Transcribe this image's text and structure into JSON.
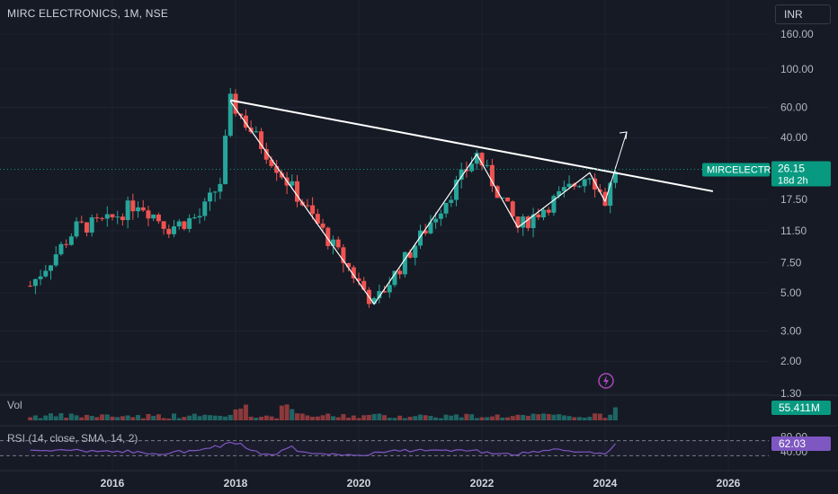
{
  "header": {
    "title": "MIRC ELECTRONICS, 1M, NSE",
    "currency": "INR"
  },
  "colors": {
    "background": "#161a25",
    "up": "#26a69a",
    "down": "#ef5350",
    "rsi_line": "#7e57c2",
    "axis_text": "#b2b5be",
    "drawing": "#ffffff",
    "price_badge": "#089981"
  },
  "chart_data": [
    {
      "type": "candlestick",
      "price_scale": "log",
      "y_ticks": [
        "160.00",
        "100.00",
        "60.00",
        "40.00",
        "17.50",
        "11.50",
        "7.50",
        "5.00",
        "3.00",
        "2.00",
        "1.30"
      ],
      "x_ticks": [
        "2016",
        "2018",
        "2020",
        "2022",
        "2024",
        "2026"
      ],
      "last_price": "26.15",
      "symbol_label": "MIRCELECTR",
      "countdown": "18d 2h",
      "pattern_pivots": [
        {
          "date": "2017-12",
          "price": 65
        },
        {
          "date": "2020-04",
          "price": 4.3
        },
        {
          "date": "2021-12",
          "price": 32
        },
        {
          "date": "2022-08",
          "price": 12
        },
        {
          "date": "2023-10",
          "price": 25
        },
        {
          "date": "2024-01",
          "price": 17
        }
      ],
      "trendline": [
        {
          "date": "2017-12",
          "price": 66
        },
        {
          "date": "2025-10",
          "price": 19.5
        }
      ]
    },
    {
      "type": "bar",
      "label": "Vol",
      "last_value": "55.411M"
    },
    {
      "type": "line",
      "label": "RSI (14, close, SMA, 14, 2)",
      "last_value": "62.03",
      "y_ticks": [
        "80.00",
        "40.00"
      ],
      "bands": [
        70,
        30
      ]
    }
  ]
}
